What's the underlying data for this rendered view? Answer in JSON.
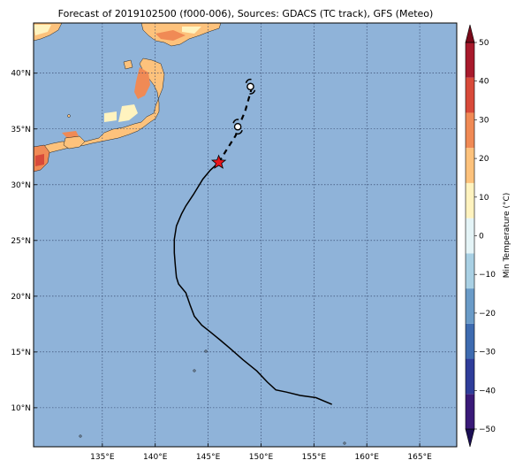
{
  "title": "Forecast of 2019102500 (f000-006), Sources: GDACS (TC track), GFS (Meteo)",
  "map": {
    "lon_range": [
      128.5,
      168.5
    ],
    "lat_range": [
      6.5,
      44.5
    ],
    "lon_ticks": [
      {
        "value": 135,
        "label": "135°E"
      },
      {
        "value": 140,
        "label": "140°E"
      },
      {
        "value": 145,
        "label": "145°E"
      },
      {
        "value": 150,
        "label": "150°E"
      },
      {
        "value": 155,
        "label": "155°E"
      },
      {
        "value": 160,
        "label": "160°E"
      },
      {
        "value": 165,
        "label": "165°E"
      }
    ],
    "lat_ticks": [
      {
        "value": 10,
        "label": "10°N"
      },
      {
        "value": 15,
        "label": "15°N"
      },
      {
        "value": 20,
        "label": "20°N"
      },
      {
        "value": 25,
        "label": "25°N"
      },
      {
        "value": 30,
        "label": "30°N"
      },
      {
        "value": 35,
        "label": "35°N"
      },
      {
        "value": 40,
        "label": "40°N"
      }
    ],
    "ocean_color": "#8fb3d9",
    "grid": "dotted",
    "past_track": [
      [
        156.7,
        10.3
      ],
      [
        155.2,
        10.9
      ],
      [
        153.7,
        11.1
      ],
      [
        152.4,
        11.4
      ],
      [
        151.4,
        11.6
      ],
      [
        150.6,
        12.3
      ],
      [
        149.6,
        13.3
      ],
      [
        148.3,
        14.3
      ],
      [
        147.1,
        15.3
      ],
      [
        146.1,
        16.1
      ],
      [
        145.2,
        16.8
      ],
      [
        144.4,
        17.4
      ],
      [
        143.7,
        18.2
      ],
      [
        143.3,
        19.2
      ],
      [
        142.9,
        20.3
      ],
      [
        142.2,
        21.1
      ],
      [
        142.0,
        21.7
      ],
      [
        141.9,
        22.7
      ],
      [
        141.8,
        23.9
      ],
      [
        141.8,
        25.1
      ],
      [
        142.0,
        26.3
      ],
      [
        142.5,
        27.4
      ],
      [
        142.9,
        28.1
      ],
      [
        143.6,
        29.1
      ],
      [
        144.5,
        30.5
      ],
      [
        145.2,
        31.3
      ],
      [
        146.0,
        32.0
      ]
    ],
    "forecast_track": [
      [
        146.0,
        32.0
      ],
      [
        146.8,
        33.2
      ],
      [
        147.6,
        34.4
      ],
      [
        148.1,
        35.7
      ],
      [
        148.5,
        36.6
      ],
      [
        148.8,
        37.6
      ],
      [
        149.1,
        38.6
      ]
    ],
    "current_position": [
      146.0,
      32.0
    ],
    "forecast_points": [
      [
        147.8,
        35.2
      ],
      [
        149.0,
        38.8
      ]
    ]
  },
  "colorbar": {
    "label": "Min Temperature (°C)",
    "vmin": -50,
    "vmax": 50,
    "ticks": [
      {
        "value": 50,
        "label": "50"
      },
      {
        "value": 40,
        "label": "40"
      },
      {
        "value": 30,
        "label": "30"
      },
      {
        "value": 20,
        "label": "20"
      },
      {
        "value": 10,
        "label": "10"
      },
      {
        "value": 0,
        "label": "0"
      },
      {
        "value": -10,
        "label": "−10"
      },
      {
        "value": -20,
        "label": "−20"
      },
      {
        "value": -30,
        "label": "−30"
      },
      {
        "value": -40,
        "label": "−40"
      },
      {
        "value": -50,
        "label": "−50"
      }
    ],
    "bins": [
      "#3a1a78",
      "#2f3d9a",
      "#3e6bb0",
      "#6a9bc8",
      "#a9d0e4",
      "#e4f4f7",
      "#fff3bf",
      "#fdc27c",
      "#f08a55",
      "#d84a3a",
      "#a81a2c"
    ],
    "under_color": "#1b0f55",
    "over_color": "#7a0a1a"
  }
}
